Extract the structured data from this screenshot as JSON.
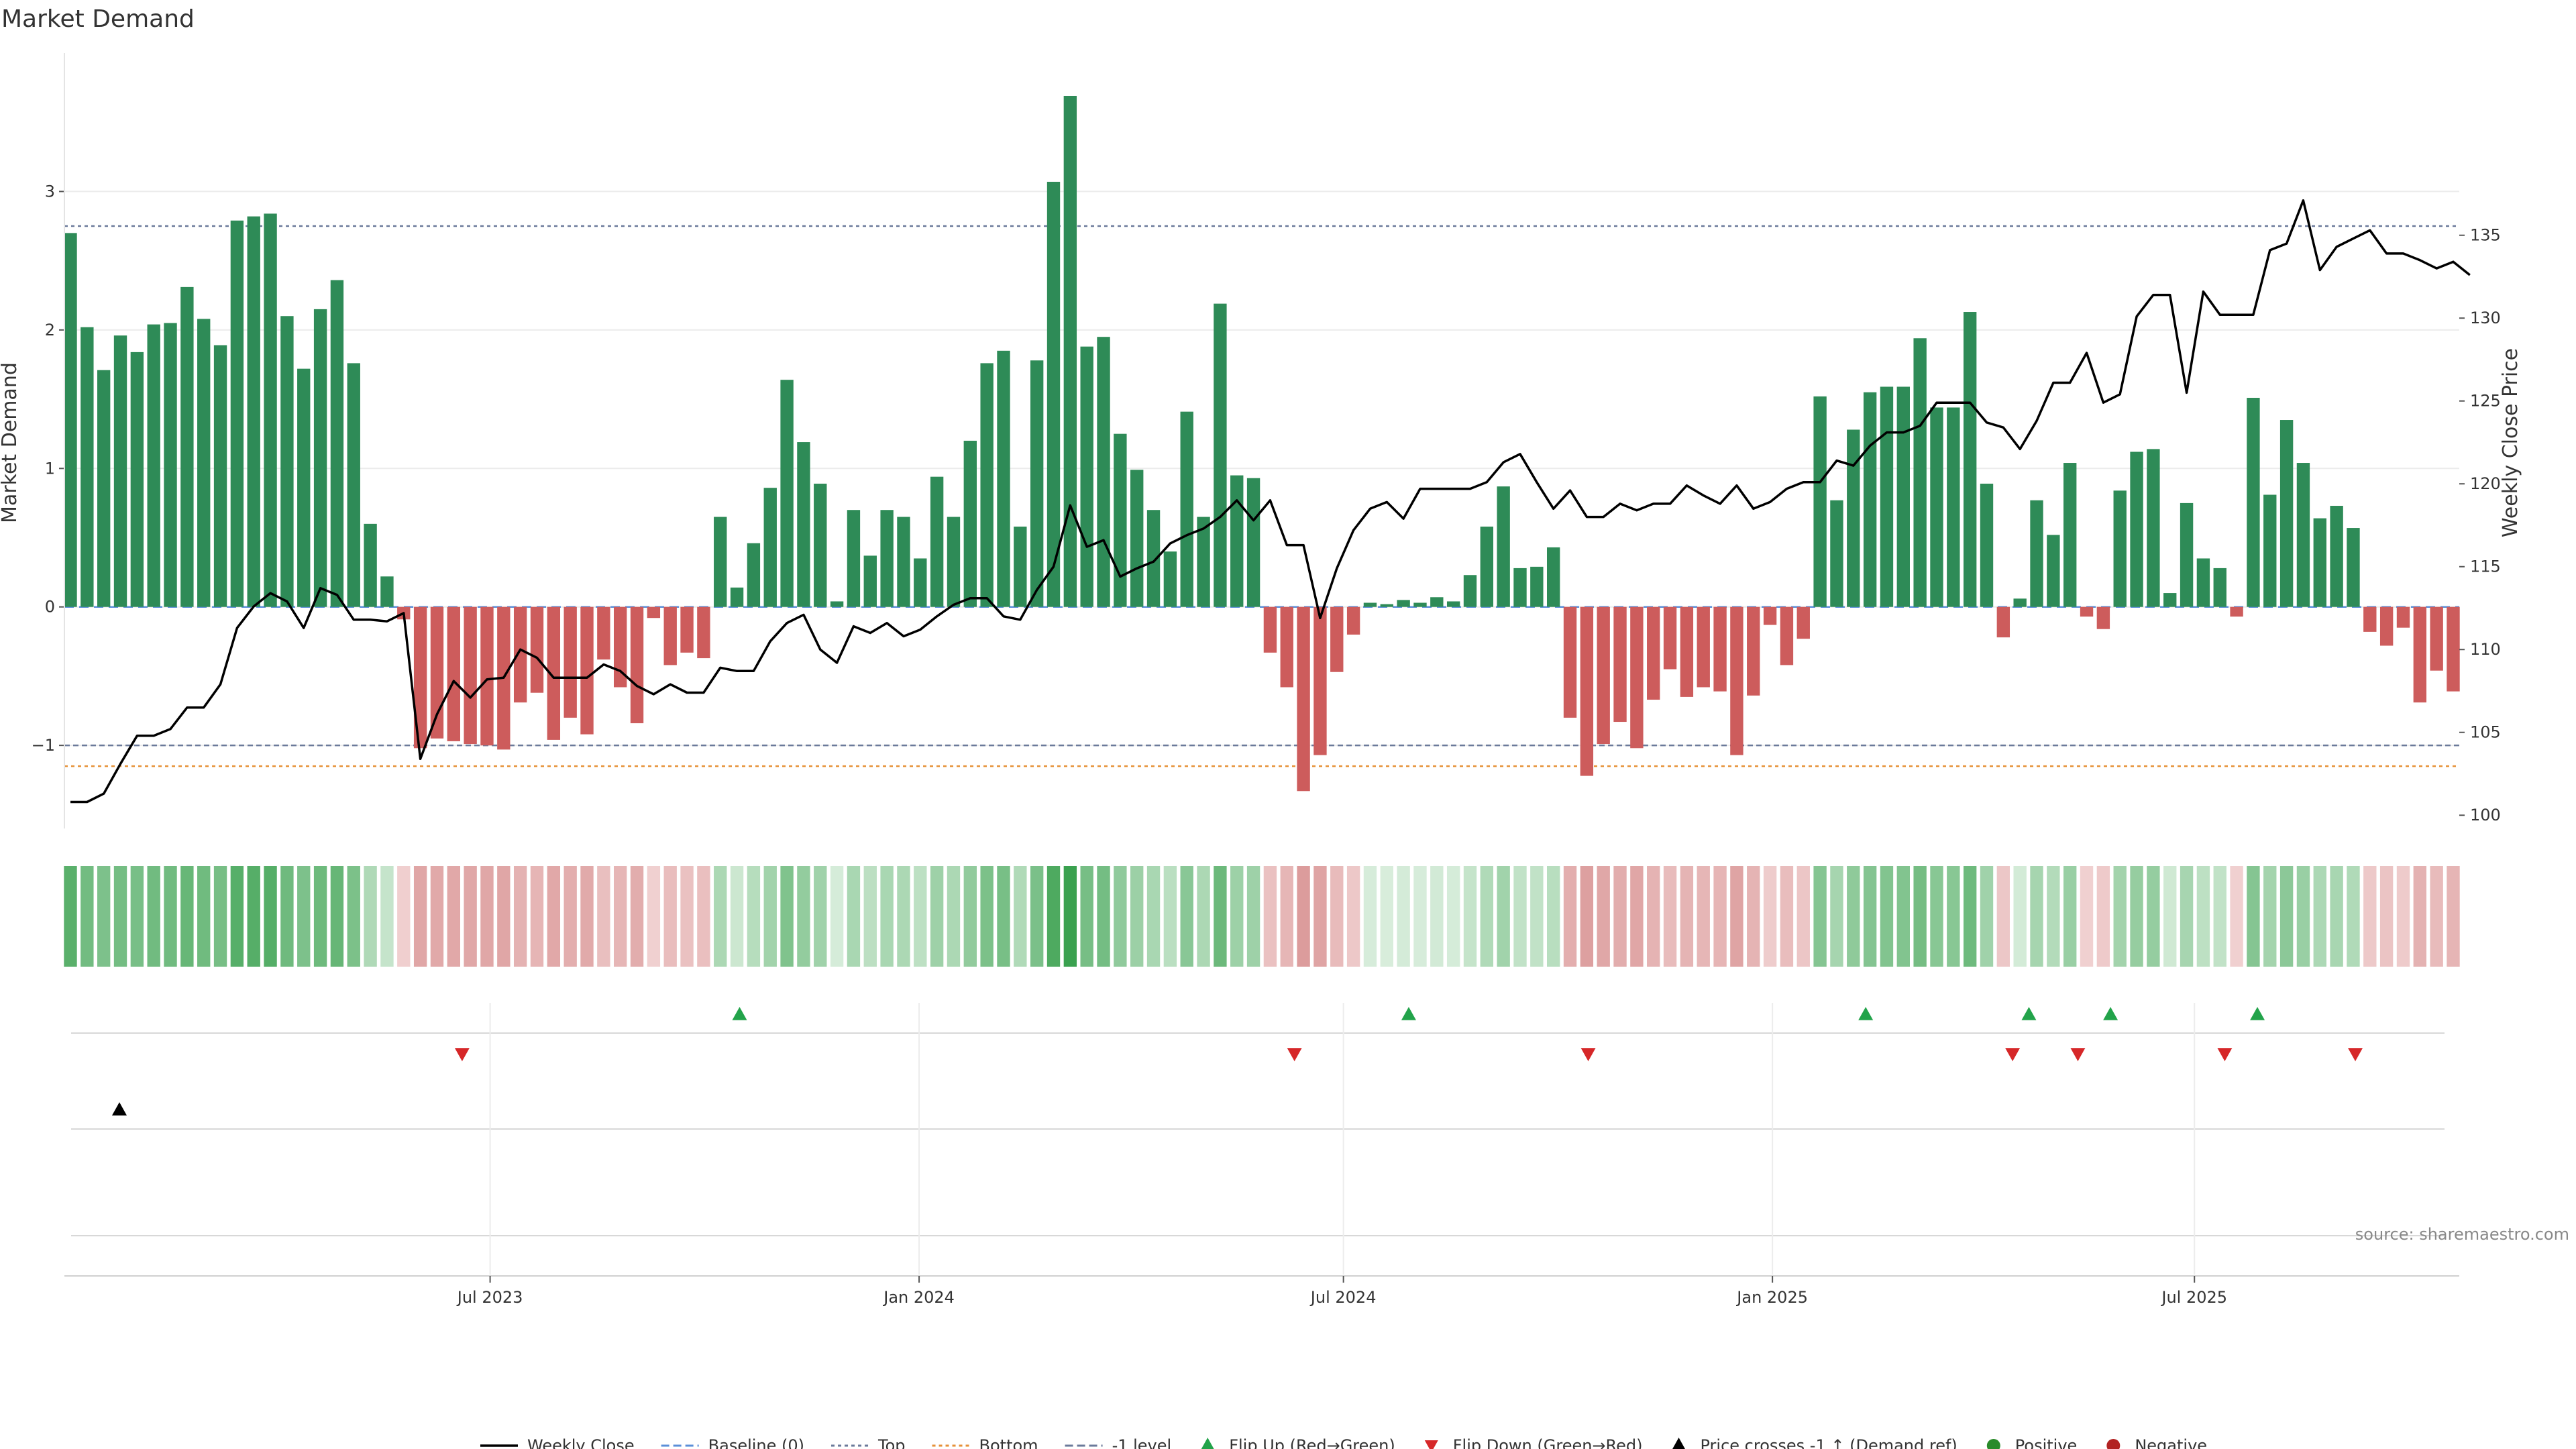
{
  "chart_data": {
    "type": "bar",
    "title": "Market Demand",
    "ylabel": "Market Demand",
    "y2label": "Weekly Close Price",
    "ylim": [
      -1.6,
      4.0
    ],
    "y2lim": [
      99.2,
      146.0
    ],
    "yticks": [
      -1,
      0,
      1,
      2,
      3
    ],
    "y2ticks": [
      100,
      105,
      110,
      115,
      120,
      125,
      130,
      135
    ],
    "x_start": "2023-01-02",
    "x_end": "2025-10-20",
    "xticks": [
      {
        "date": "2023-07-01",
        "label": "Jul 2023"
      },
      {
        "date": "2024-01-01",
        "label": "Jan 2024"
      },
      {
        "date": "2024-07-01",
        "label": "Jul 2024"
      },
      {
        "date": "2025-01-01",
        "label": "Jan 2025"
      },
      {
        "date": "2025-07-01",
        "label": "Jul 2025"
      }
    ],
    "reference_lines": {
      "baseline": 0,
      "top": 2.75,
      "bottom": -1.15,
      "minus_one": -1.0
    },
    "grid": true,
    "legend_position": "bottom",
    "colors": {
      "positive": "#2e8b57",
      "negative": "#cd5c5c",
      "price": "#000000",
      "top": "#6b7a9a",
      "bottom": "#e69138",
      "minus_one": "#6b7a9a",
      "baseline": "#5b8fd8",
      "flip_up": "#22a34a",
      "flip_down": "#d62728",
      "cross": "#000000"
    },
    "series": [
      {
        "name": "Market Demand",
        "values": [
          2.7,
          2.02,
          1.71,
          1.96,
          1.84,
          2.04,
          2.05,
          2.31,
          2.08,
          1.89,
          2.79,
          2.82,
          2.84,
          2.1,
          1.72,
          2.15,
          2.36,
          1.76,
          0.6,
          0.22,
          -0.09,
          -1.02,
          -0.95,
          -0.97,
          -0.99,
          -1.0,
          -1.03,
          -0.69,
          -0.62,
          -0.96,
          -0.8,
          -0.92,
          -0.38,
          -0.58,
          -0.84,
          -0.08,
          -0.42,
          -0.33,
          -0.37,
          0.65,
          0.14,
          0.46,
          0.86,
          1.64,
          1.19,
          0.89,
          0.04,
          0.7,
          0.37,
          0.7,
          0.65,
          0.35,
          0.94,
          0.65,
          1.2,
          1.76,
          1.85,
          0.58,
          1.78,
          3.07,
          3.69,
          1.88,
          1.95,
          1.25,
          0.99,
          0.7,
          0.4,
          1.41,
          0.65,
          2.19,
          0.95,
          0.93,
          -0.33,
          -0.58,
          -1.33,
          -1.07,
          -0.47,
          -0.2,
          0.03,
          0.02,
          0.05,
          0.03,
          0.07,
          0.04,
          0.23,
          0.58,
          0.87,
          0.28,
          0.29,
          0.43,
          -0.8,
          -1.22,
          -0.99,
          -0.83,
          -1.02,
          -0.67,
          -0.45,
          -0.65,
          -0.58,
          -0.61,
          -1.07,
          -0.64,
          -0.13,
          -0.42,
          -0.23,
          1.52,
          0.77,
          1.28,
          1.55,
          1.59,
          1.59,
          1.94,
          1.44,
          1.44,
          2.13,
          0.89,
          -0.22,
          0.06,
          0.77,
          0.52,
          1.04,
          -0.07,
          -0.16,
          0.84,
          1.12,
          1.14,
          0.1,
          0.75,
          0.35,
          0.28,
          -0.07,
          1.51,
          0.81,
          1.35,
          1.04,
          0.64,
          0.73,
          0.57,
          -0.18,
          -0.28,
          -0.15,
          -0.69,
          -0.46,
          -0.61
        ]
      },
      {
        "name": "Weekly Close",
        "values": [
          100.8,
          100.8,
          101.3,
          103.1,
          104.8,
          104.8,
          105.2,
          106.5,
          106.5,
          107.9,
          111.3,
          112.6,
          113.4,
          112.9,
          111.3,
          113.7,
          113.3,
          111.8,
          111.8,
          111.7,
          112.2,
          103.4,
          106.1,
          108.1,
          107.1,
          108.2,
          108.3,
          110.0,
          109.5,
          108.3,
          108.3,
          108.3,
          109.1,
          108.7,
          107.8,
          107.3,
          107.9,
          107.4,
          107.4,
          108.9,
          108.7,
          108.7,
          110.5,
          111.6,
          112.1,
          110.0,
          109.2,
          111.4,
          111.0,
          111.6,
          110.8,
          111.2,
          112.0,
          112.7,
          113.1,
          113.1,
          112.0,
          111.8,
          113.6,
          115.0,
          118.7,
          116.2,
          116.6,
          114.4,
          114.9,
          115.3,
          116.4,
          116.9,
          117.3,
          118.0,
          119.0,
          117.8,
          119.0,
          116.3,
          116.3,
          111.9,
          114.9,
          117.2,
          118.5,
          118.9,
          117.9,
          119.7,
          119.7,
          119.7,
          119.7,
          120.1,
          121.3,
          121.8,
          120.1,
          118.5,
          119.6,
          118.0,
          118.0,
          118.8,
          118.4,
          118.8,
          118.8,
          119.9,
          119.3,
          118.8,
          119.9,
          118.5,
          118.9,
          119.7,
          120.1,
          120.1,
          121.4,
          121.1,
          122.3,
          123.1,
          123.1,
          123.5,
          124.9,
          124.9,
          124.9,
          123.7,
          123.4,
          122.1,
          123.8,
          126.1,
          126.1,
          127.9,
          124.9,
          125.4,
          130.1,
          131.4,
          131.4,
          125.5,
          131.6,
          130.2,
          130.2,
          130.2,
          134.1,
          134.5,
          137.1,
          132.9,
          134.3,
          134.8,
          135.3,
          133.9,
          133.9,
          133.5,
          133.0,
          133.4,
          132.6
        ]
      }
    ],
    "flip_up": [
      "2023-10-16",
      "2024-07-29",
      "2025-02-10",
      "2025-04-21",
      "2025-05-26",
      "2025-07-28"
    ],
    "flip_down": [
      "2023-06-19",
      "2024-06-10",
      "2024-10-14",
      "2025-04-14",
      "2025-05-12",
      "2025-07-14",
      "2025-09-08"
    ],
    "price_crosses": [
      "2023-01-23"
    ]
  },
  "legend": [
    {
      "label": "Weekly Close",
      "symbol": "line-solid",
      "color": "#000000"
    },
    {
      "label": "Baseline (0)",
      "symbol": "line-dash",
      "color": "#5b8fd8"
    },
    {
      "label": "Top",
      "symbol": "line-dot",
      "color": "#6b7a9a"
    },
    {
      "label": "Bottom",
      "symbol": "line-dot",
      "color": "#e69138"
    },
    {
      "label": "-1 level",
      "symbol": "line-dash",
      "color": "#6b7a9a"
    },
    {
      "label": "Flip Up (Red→Green)",
      "symbol": "triangle-up",
      "color": "#22a34a"
    },
    {
      "label": "Flip Down (Green→Red)",
      "symbol": "triangle-down",
      "color": "#d62728"
    },
    {
      "label": "Price crosses -1 ↑ (Demand ref)",
      "symbol": "triangle-up",
      "color": "#000000"
    },
    {
      "label": "Positive",
      "symbol": "circle",
      "color": "#2a8a2a"
    },
    {
      "label": "Negative",
      "symbol": "circle",
      "color": "#b22222"
    }
  ],
  "source": "source: sharemaestro.com"
}
